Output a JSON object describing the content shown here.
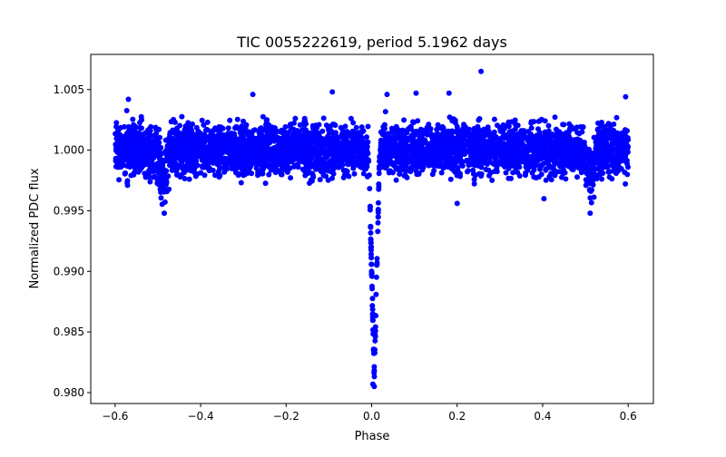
{
  "chart_data": {
    "type": "scatter",
    "title": "TIC 0055222619, period 5.1962 days",
    "xlabel": "Phase",
    "ylabel": "Normalized PDC flux",
    "xlim": [
      -0.657,
      0.659
    ],
    "ylim": [
      0.9791,
      1.0079
    ],
    "xticks": [
      -0.6,
      -0.4,
      -0.2,
      0.0,
      0.2,
      0.4,
      0.6
    ],
    "xtick_labels": [
      "−0.6",
      "−0.4",
      "−0.2",
      "0.0",
      "0.2",
      "0.4",
      "0.6"
    ],
    "yticks": [
      0.98,
      0.985,
      0.99,
      0.995,
      1.0,
      1.005
    ],
    "ytick_labels": [
      "0.980",
      "0.985",
      "0.990",
      "0.995",
      "1.000",
      "1.005"
    ],
    "grid": false,
    "marker_color": "#0000ff",
    "series": [
      {
        "name": "PDC flux",
        "phase_range": [
          -0.6,
          0.6
        ],
        "n_points": 4200,
        "baseline": 1.0,
        "scatter_sigma": 0.00105,
        "primary_eclipse": {
          "center": 0.006,
          "half_width": 0.013,
          "depth": 0.0185
        },
        "secondary_eclipse": {
          "centers": [
            -0.488,
            0.511
          ],
          "half_width": 0.018,
          "depth": 0.0022
        },
        "outliers": [
          {
            "x": 0.256,
            "y": 1.0065
          },
          {
            "x": -0.092,
            "y": 1.0048
          },
          {
            "x": -0.278,
            "y": 1.0046
          },
          {
            "x": 0.036,
            "y": 1.0046
          },
          {
            "x": 0.104,
            "y": 1.0047
          },
          {
            "x": 0.181,
            "y": 1.0047
          },
          {
            "x": 0.594,
            "y": 1.0044
          },
          {
            "x": -0.569,
            "y": 1.0042
          },
          {
            "x": -0.485,
            "y": 0.9948
          },
          {
            "x": 0.511,
            "y": 0.9948
          },
          {
            "x": 0.2,
            "y": 0.9956
          },
          {
            "x": 0.006,
            "y": 0.9805
          },
          {
            "x": 0.003,
            "y": 0.9807
          },
          {
            "x": -0.571,
            "y": 0.9971
          },
          {
            "x": 0.403,
            "y": 0.996
          }
        ]
      }
    ]
  }
}
